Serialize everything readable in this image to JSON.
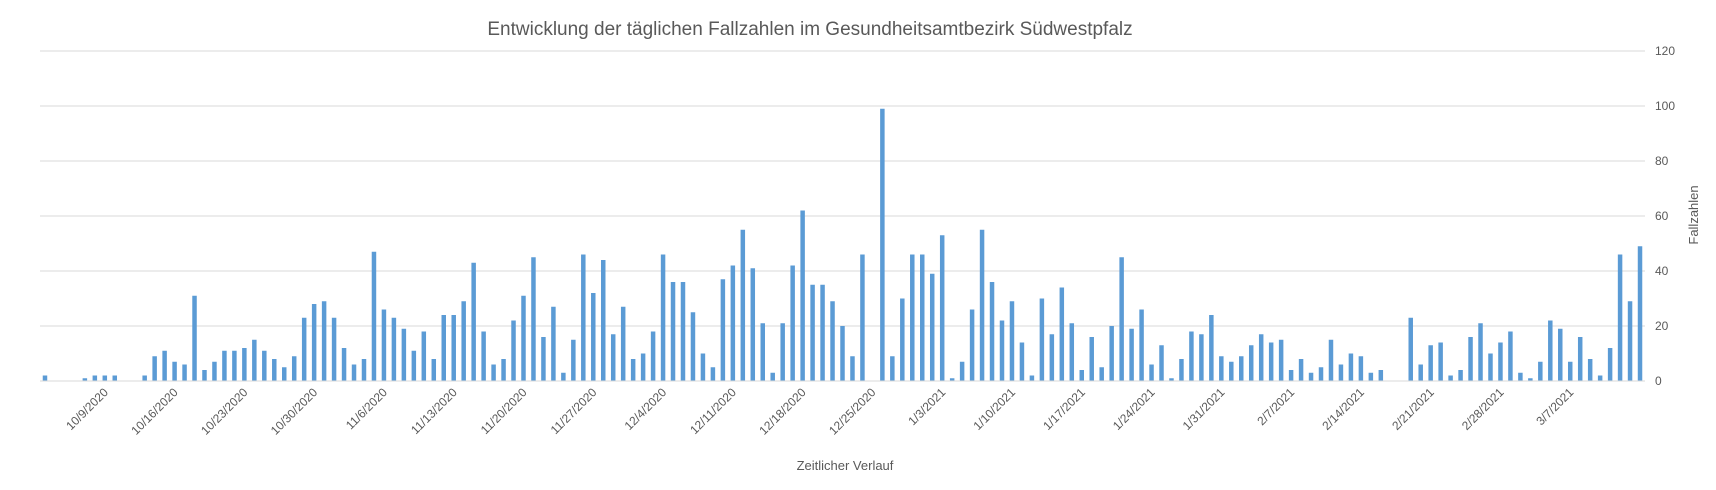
{
  "chart_data": {
    "type": "bar",
    "title": "Entwicklung der täglichen Fallzahlen im Gesundheitsamtbezirk Südwestpfalz",
    "xlabel": "Zeitlicher Verlauf",
    "ylabel": "Fallzahlen",
    "ylim": [
      0,
      120
    ],
    "y_ticks": [
      0,
      20,
      40,
      60,
      80,
      100,
      120
    ],
    "y_axis_position": "right",
    "grid": true,
    "legend": "none",
    "bar_color": "#5b9bd5",
    "x_tick_labels": [
      "10/9/2020",
      "10/16/2020",
      "10/23/2020",
      "10/30/2020",
      "11/6/2020",
      "11/13/2020",
      "11/20/2020",
      "11/27/2020",
      "12/4/2020",
      "12/11/2020",
      "12/18/2020",
      "12/25/2020",
      "1/3/2021",
      "1/10/2021",
      "1/17/2021",
      "1/24/2021",
      "1/31/2021",
      "2/7/2021",
      "2/14/2021",
      "2/21/2021",
      "2/28/2021",
      "3/7/2021"
    ],
    "values": [
      2,
      0,
      0,
      0,
      1,
      2,
      2,
      2,
      0,
      0,
      2,
      9,
      11,
      7,
      6,
      31,
      4,
      7,
      11,
      11,
      12,
      15,
      11,
      8,
      5,
      9,
      23,
      28,
      29,
      23,
      12,
      6,
      8,
      47,
      26,
      23,
      19,
      11,
      18,
      8,
      24,
      24,
      29,
      43,
      18,
      6,
      8,
      22,
      31,
      45,
      16,
      27,
      3,
      15,
      46,
      32,
      44,
      17,
      27,
      8,
      10,
      18,
      46,
      36,
      36,
      25,
      10,
      5,
      37,
      42,
      55,
      41,
      21,
      3,
      21,
      42,
      62,
      35,
      35,
      29,
      20,
      9,
      46,
      0,
      99,
      9,
      30,
      46,
      46,
      39,
      53,
      1,
      7,
      26,
      55,
      36,
      22,
      29,
      14,
      2,
      30,
      17,
      34,
      21,
      4,
      16,
      5,
      20,
      45,
      19,
      26,
      6,
      13,
      1,
      8,
      18,
      17,
      24,
      9,
      7,
      9,
      13,
      17,
      14,
      15,
      4,
      8,
      3,
      5,
      15,
      6,
      10,
      9,
      3,
      4,
      0,
      0,
      23,
      6,
      13,
      14,
      2,
      4,
      16,
      21,
      10,
      14,
      18,
      3,
      1,
      7,
      22,
      19,
      7,
      16,
      8,
      2,
      12,
      46,
      29,
      49
    ]
  }
}
